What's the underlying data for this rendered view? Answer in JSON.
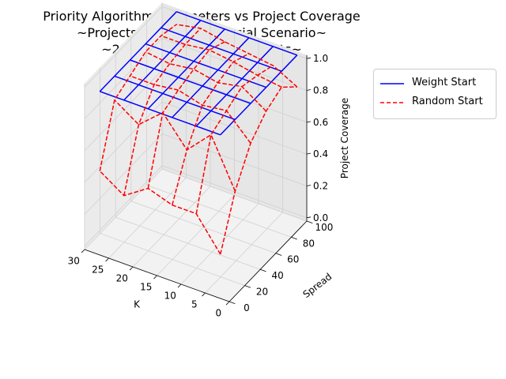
{
  "chart_data": {
    "type": "surface3d-wireframe",
    "title": [
      "Priority Algorithm Parameters vs Project Coverage",
      "~Projects, Diversity & Social Scenario~",
      "~250 iterations, 120 students~"
    ],
    "xlabel": "K",
    "ylabel": "Spread",
    "zlabel": "Project Coverage",
    "x_ticks": [
      0,
      5,
      10,
      15,
      20,
      25,
      30
    ],
    "y_ticks": [
      0,
      20,
      40,
      60,
      80,
      100
    ],
    "z_ticks": [
      "0.0",
      "0.2",
      "0.4",
      "0.6",
      "0.8",
      "1.0"
    ],
    "xlim": [
      0,
      30
    ],
    "ylim": [
      0,
      100
    ],
    "zlim": [
      0,
      1
    ],
    "grid_k": [
      2,
      7,
      12,
      17,
      22,
      27
    ],
    "grid_spread": [
      1,
      20,
      40,
      60,
      80,
      100
    ],
    "legend_position": "outside upper right",
    "series": [
      {
        "name": "Weight Start",
        "color": "#0000ff",
        "style": "solid",
        "z": [
          [
            1.0,
            1.0,
            1.0,
            1.0,
            1.0,
            1.0
          ],
          [
            1.0,
            1.0,
            1.0,
            1.0,
            1.0,
            1.0
          ],
          [
            1.0,
            1.0,
            1.0,
            1.0,
            1.0,
            1.0
          ],
          [
            1.0,
            1.0,
            1.0,
            1.0,
            1.0,
            1.0
          ],
          [
            1.0,
            1.0,
            1.0,
            1.0,
            1.0,
            1.0
          ],
          [
            1.0,
            1.0,
            1.0,
            1.0,
            1.0,
            1.0
          ]
        ]
      },
      {
        "name": "Random Start",
        "color": "#ff0000",
        "style": "dashed",
        "z": [
          [
            0.25,
            0.55,
            0.75,
            0.85,
            0.9,
            0.8
          ],
          [
            0.45,
            0.85,
            0.9,
            0.95,
            0.92,
            0.88
          ],
          [
            0.45,
            0.7,
            0.88,
            0.92,
            0.95,
            0.9
          ],
          [
            0.5,
            0.88,
            0.92,
            0.95,
            0.97,
            0.92
          ],
          [
            0.4,
            0.75,
            0.9,
            0.93,
            0.95,
            0.95
          ],
          [
            0.5,
            0.85,
            0.9,
            0.95,
            0.95,
            0.92
          ]
        ]
      }
    ]
  }
}
